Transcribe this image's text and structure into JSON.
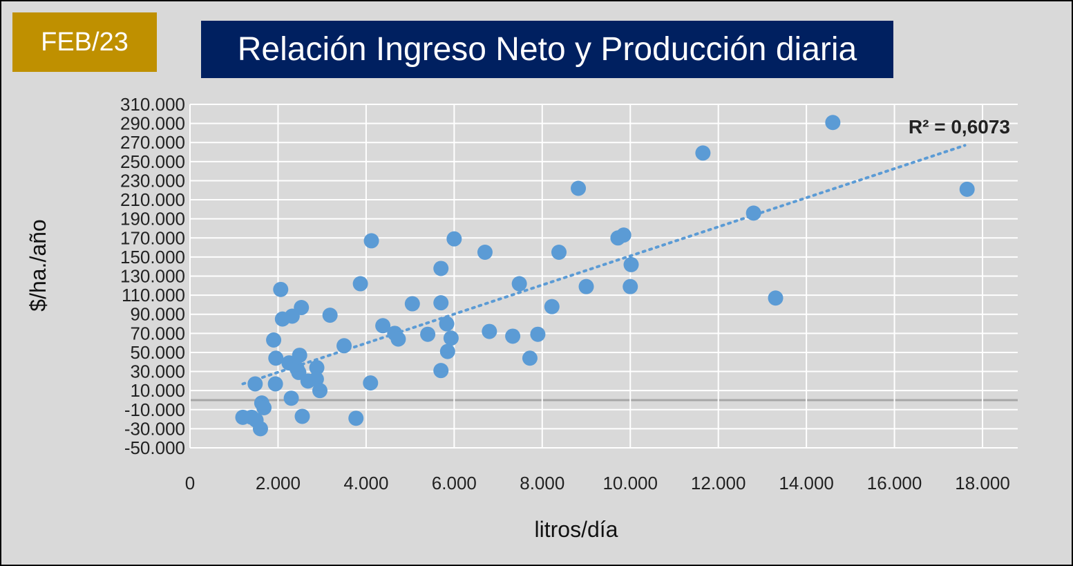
{
  "badge": "FEB/23",
  "title": "Relación Ingreso Neto y Producción diaria",
  "colors": {
    "badge_bg": "#bf9000",
    "title_bg": "#002060",
    "point": "#5b9bd5",
    "grid": "#ffffff",
    "frame_bg": "#d9d9d9"
  },
  "chart_data": {
    "type": "scatter",
    "xlabel": "litros/día",
    "ylabel": "$/ha./año",
    "xlim": [
      0,
      18800
    ],
    "ylim": [
      -50000,
      310000
    ],
    "x_ticks": [
      {
        "value": 0,
        "label": "0"
      },
      {
        "value": 2000,
        "label": "2.000"
      },
      {
        "value": 4000,
        "label": "4.000"
      },
      {
        "value": 6000,
        "label": "6.000"
      },
      {
        "value": 8000,
        "label": "8.000"
      },
      {
        "value": 10000,
        "label": "10.000"
      },
      {
        "value": 12000,
        "label": "12.000"
      },
      {
        "value": 14000,
        "label": "14.000"
      },
      {
        "value": 16000,
        "label": "16.000"
      },
      {
        "value": 18000,
        "label": "18.000"
      }
    ],
    "y_ticks": [
      {
        "value": 310000,
        "label": "310.000"
      },
      {
        "value": 290000,
        "label": "290.000"
      },
      {
        "value": 270000,
        "label": "270.000"
      },
      {
        "value": 250000,
        "label": "250.000"
      },
      {
        "value": 230000,
        "label": "230.000"
      },
      {
        "value": 210000,
        "label": "210.000"
      },
      {
        "value": 190000,
        "label": "190.000"
      },
      {
        "value": 170000,
        "label": "170.000"
      },
      {
        "value": 150000,
        "label": "150.000"
      },
      {
        "value": 130000,
        "label": "130.000"
      },
      {
        "value": 110000,
        "label": "110.000"
      },
      {
        "value": 90000,
        "label": "90.000"
      },
      {
        "value": 70000,
        "label": "70.000"
      },
      {
        "value": 50000,
        "label": "50.000"
      },
      {
        "value": 30000,
        "label": "30.000"
      },
      {
        "value": 10000,
        "label": "10.000"
      },
      {
        "value": -10000,
        "label": "-10.000"
      },
      {
        "value": -30000,
        "label": "-30.000"
      },
      {
        "value": -50000,
        "label": "-50.000"
      }
    ],
    "grid": true,
    "points": [
      {
        "x": 14600,
        "y": 291000
      },
      {
        "x": 11650,
        "y": 259000
      },
      {
        "x": 17650,
        "y": 221000
      },
      {
        "x": 8820,
        "y": 222000
      },
      {
        "x": 12800,
        "y": 196000
      },
      {
        "x": 9720,
        "y": 170000
      },
      {
        "x": 9850,
        "y": 173000
      },
      {
        "x": 10020,
        "y": 142000
      },
      {
        "x": 9000,
        "y": 119000
      },
      {
        "x": 10000,
        "y": 119000
      },
      {
        "x": 13300,
        "y": 107000
      },
      {
        "x": 8380,
        "y": 155000
      },
      {
        "x": 8220,
        "y": 98000
      },
      {
        "x": 7480,
        "y": 122000
      },
      {
        "x": 7900,
        "y": 69000
      },
      {
        "x": 7330,
        "y": 67000
      },
      {
        "x": 7720,
        "y": 44000
      },
      {
        "x": 6700,
        "y": 155000
      },
      {
        "x": 6800,
        "y": 72000
      },
      {
        "x": 6000,
        "y": 169000
      },
      {
        "x": 5700,
        "y": 138000
      },
      {
        "x": 5700,
        "y": 102000
      },
      {
        "x": 5830,
        "y": 80000
      },
      {
        "x": 5930,
        "y": 65000
      },
      {
        "x": 5850,
        "y": 51000
      },
      {
        "x": 5700,
        "y": 31000
      },
      {
        "x": 5400,
        "y": 69000
      },
      {
        "x": 5050,
        "y": 101000
      },
      {
        "x": 4120,
        "y": 167000
      },
      {
        "x": 3870,
        "y": 122000
      },
      {
        "x": 4380,
        "y": 78000
      },
      {
        "x": 4650,
        "y": 70000
      },
      {
        "x": 4730,
        "y": 64000
      },
      {
        "x": 4100,
        "y": 18000
      },
      {
        "x": 3500,
        "y": 57000
      },
      {
        "x": 3770,
        "y": -19000
      },
      {
        "x": 3180,
        "y": 89000
      },
      {
        "x": 2880,
        "y": 34000
      },
      {
        "x": 2870,
        "y": 22000
      },
      {
        "x": 2950,
        "y": 10000
      },
      {
        "x": 2530,
        "y": 97000
      },
      {
        "x": 2320,
        "y": 88000
      },
      {
        "x": 2100,
        "y": 85000
      },
      {
        "x": 2060,
        "y": 116000
      },
      {
        "x": 1900,
        "y": 63000
      },
      {
        "x": 1950,
        "y": 44000
      },
      {
        "x": 2250,
        "y": 39000
      },
      {
        "x": 2490,
        "y": 47000
      },
      {
        "x": 2430,
        "y": 33000
      },
      {
        "x": 2470,
        "y": 29000
      },
      {
        "x": 2680,
        "y": 20000
      },
      {
        "x": 1940,
        "y": 17000
      },
      {
        "x": 1480,
        "y": 17000
      },
      {
        "x": 2300,
        "y": 2000
      },
      {
        "x": 2550,
        "y": -17000
      },
      {
        "x": 1630,
        "y": -3000
      },
      {
        "x": 1680,
        "y": -8000
      },
      {
        "x": 1200,
        "y": -18000
      },
      {
        "x": 1400,
        "y": -18000
      },
      {
        "x": 1500,
        "y": -21000
      },
      {
        "x": 1600,
        "y": -30000
      }
    ],
    "trendline": {
      "type": "linear",
      "style": "dotted",
      "x": [
        1200,
        17600
      ],
      "y": [
        17000,
        267000
      ]
    },
    "annotation": "R² = 0,6073"
  }
}
